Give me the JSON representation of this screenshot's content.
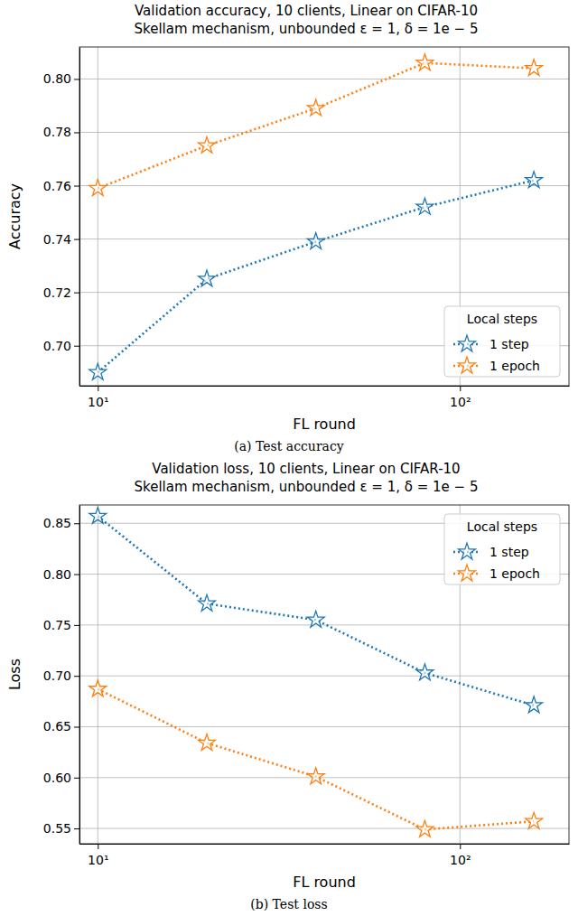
{
  "chart_data": [
    {
      "type": "line",
      "title": "Validation accuracy, 10 clients, Linear on CIFAR-10",
      "subtitle": "Skellam mechanism, unbounded ε = 1, δ = 1e − 5",
      "x_label": "FL round",
      "y_label": "Accuracy",
      "caption": "(a) Test accuracy",
      "x": [
        10,
        20,
        40,
        80,
        160
      ],
      "log": "x",
      "xlim": [
        8.9,
        200
      ],
      "xticks": [
        {
          "value": 10,
          "label": "10¹"
        },
        {
          "value": 100,
          "label": "10²"
        }
      ],
      "ylim": [
        0.685,
        0.812
      ],
      "yticks": [
        {
          "value": 0.7,
          "label": "0.70"
        },
        {
          "value": 0.72,
          "label": "0.72"
        },
        {
          "value": 0.74,
          "label": "0.74"
        },
        {
          "value": 0.76,
          "label": "0.76"
        },
        {
          "value": 0.78,
          "label": "0.78"
        },
        {
          "value": 0.8,
          "label": "0.80"
        }
      ],
      "grid": true,
      "legend": "lower right",
      "legend_title": "Local steps",
      "series": [
        {
          "name": "1 step",
          "color": "#1f77b4",
          "marker": "star",
          "line_style": "dotted",
          "values": [
            0.69,
            0.725,
            0.739,
            0.752,
            0.762
          ]
        },
        {
          "name": "1 epoch",
          "color": "#ff7f0e",
          "marker": "star",
          "line_style": "dotted",
          "values": [
            0.759,
            0.775,
            0.789,
            0.806,
            0.804
          ]
        }
      ]
    },
    {
      "type": "line",
      "title": "Validation loss, 10 clients, Linear on CIFAR-10",
      "subtitle": "Skellam mechanism, unbounded ε = 1, δ = 1e − 5",
      "x_label": "FL round",
      "y_label": "Loss",
      "caption": "(b) Test loss",
      "x": [
        10,
        20,
        40,
        80,
        160
      ],
      "log": "x",
      "xlim": [
        8.9,
        200
      ],
      "xticks": [
        {
          "value": 10,
          "label": "10¹"
        },
        {
          "value": 100,
          "label": "10²"
        }
      ],
      "ylim": [
        0.535,
        0.868
      ],
      "yticks": [
        {
          "value": 0.55,
          "label": "0.55"
        },
        {
          "value": 0.6,
          "label": "0.60"
        },
        {
          "value": 0.65,
          "label": "0.65"
        },
        {
          "value": 0.7,
          "label": "0.70"
        },
        {
          "value": 0.75,
          "label": "0.75"
        },
        {
          "value": 0.8,
          "label": "0.80"
        },
        {
          "value": 0.85,
          "label": "0.85"
        }
      ],
      "grid": true,
      "legend": "upper right",
      "legend_title": "Local steps",
      "series": [
        {
          "name": "1 step",
          "color": "#1f77b4",
          "marker": "star",
          "line_style": "dotted",
          "values": [
            0.857,
            0.771,
            0.755,
            0.703,
            0.671
          ]
        },
        {
          "name": "1 epoch",
          "color": "#ff7f0e",
          "marker": "star",
          "line_style": "dotted",
          "values": [
            0.687,
            0.634,
            0.601,
            0.549,
            0.557
          ]
        }
      ]
    }
  ]
}
